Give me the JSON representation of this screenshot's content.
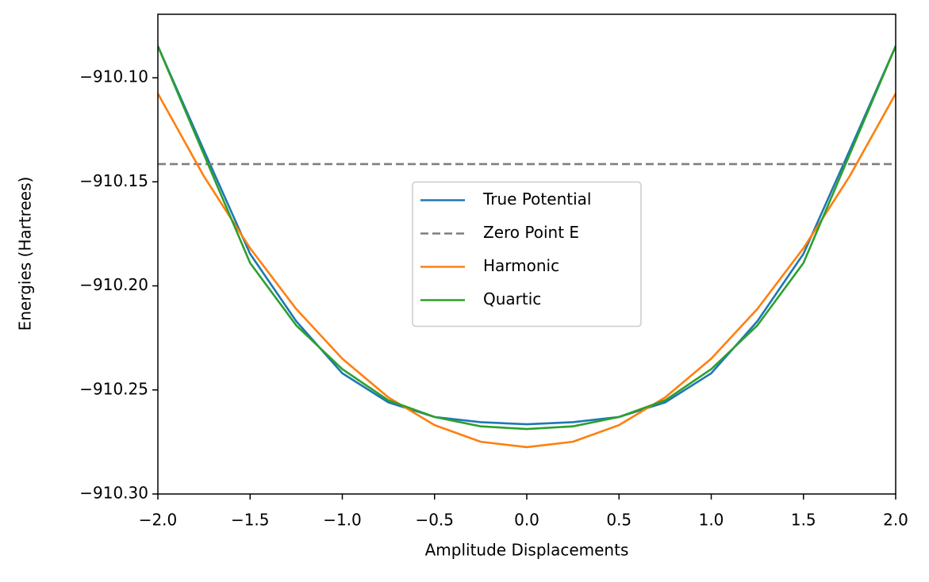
{
  "chart_data": {
    "type": "line",
    "xlabel": "Amplitude Displacements",
    "ylabel": "Energies (Hartrees)",
    "x": [
      -2,
      -1.75,
      -1.5,
      -1.25,
      -1,
      -0.75,
      -0.5,
      -0.25,
      0,
      0.25,
      0.5,
      0.75,
      1,
      1.25,
      1.5,
      1.75,
      2
    ],
    "series": [
      {
        "name": "True Potential",
        "color": "#1f77b4",
        "values": [
          -910.0848,
          -910.135,
          -910.1846,
          -910.217,
          -910.242,
          -910.256,
          -910.263,
          -910.2655,
          -910.2665,
          -910.2655,
          -910.263,
          -910.256,
          -910.242,
          -910.217,
          -910.1846,
          -910.135,
          -910.0848
        ]
      },
      {
        "name": "Zero Point E",
        "color": "#7f7f7f",
        "dashed": true,
        "hline": -910.1415
      },
      {
        "name": "Harmonic",
        "color": "#ff7f0e",
        "values": [
          -910.1076,
          -910.1474,
          -910.1819,
          -910.2111,
          -910.235,
          -910.2536,
          -910.2669,
          -910.2749,
          -910.2775,
          -910.2749,
          -910.2669,
          -910.2536,
          -910.235,
          -910.2111,
          -910.1819,
          -910.1474,
          -910.1076
        ]
      },
      {
        "name": "Quartic",
        "color": "#2ca02c",
        "values": [
          -910.0848,
          -910.137,
          -910.189,
          -910.219,
          -910.24,
          -910.255,
          -910.263,
          -910.2675,
          -910.2688,
          -910.2675,
          -910.263,
          -910.255,
          -910.24,
          -910.219,
          -910.189,
          -910.137,
          -910.0848
        ]
      }
    ],
    "xlim": [
      -2,
      2
    ],
    "ylim": [
      -910.3,
      -910.0695
    ],
    "xticks": [
      {
        "value": -2,
        "label": "−2.0"
      },
      {
        "value": -1.5,
        "label": "−1.5"
      },
      {
        "value": -1,
        "label": "−1.0"
      },
      {
        "value": -0.5,
        "label": "−0.5"
      },
      {
        "value": 0,
        "label": "0.0"
      },
      {
        "value": 0.5,
        "label": "0.5"
      },
      {
        "value": 1,
        "label": "1.0"
      },
      {
        "value": 1.5,
        "label": "1.5"
      },
      {
        "value": 2,
        "label": "2.0"
      }
    ],
    "yticks": [
      {
        "value": -910.3,
        "label": "−910.30"
      },
      {
        "value": -910.25,
        "label": "−910.25"
      },
      {
        "value": -910.2,
        "label": "−910.20"
      },
      {
        "value": -910.15,
        "label": "−910.15"
      },
      {
        "value": -910.1,
        "label": "−910.10"
      }
    ],
    "grid": false,
    "legend": "center"
  }
}
